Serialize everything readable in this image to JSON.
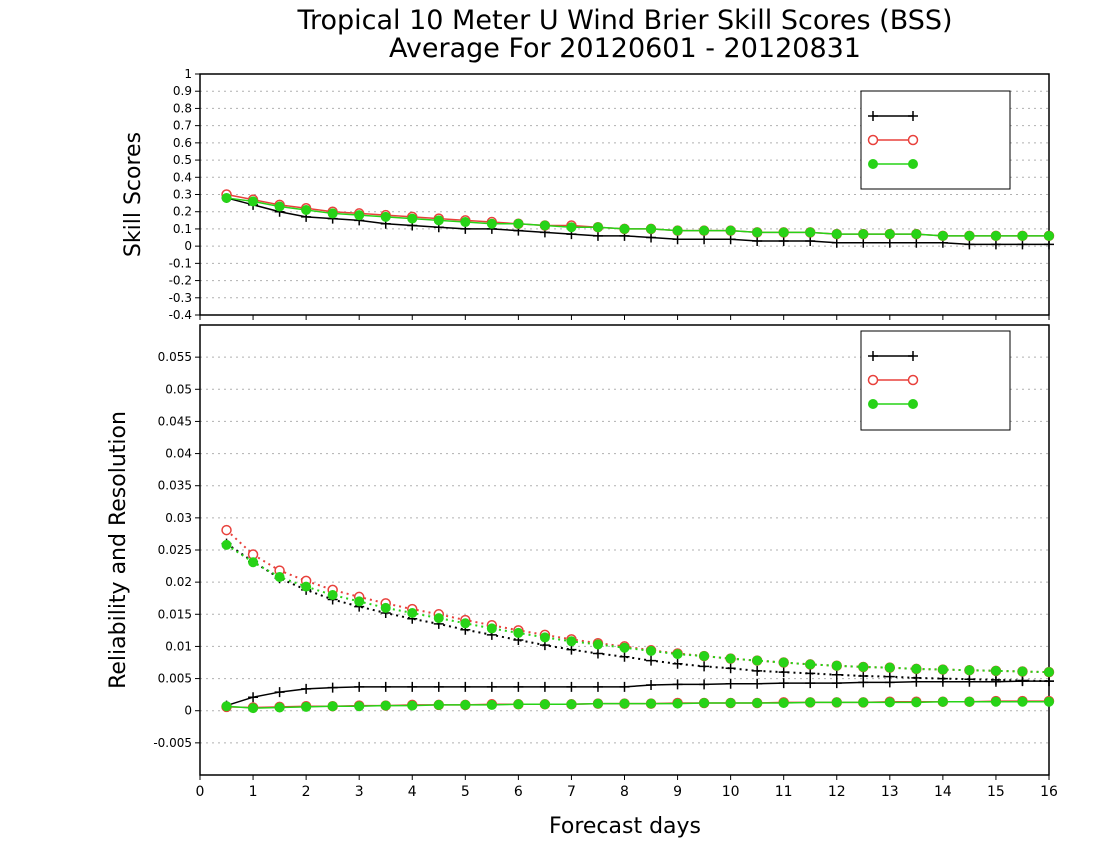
{
  "title_line1": "Tropical 10 Meter U Wind Brier Skill Scores (BSS)",
  "title_line2": "Average For 20120601 - 20120831",
  "xlabel": "Forecast days",
  "colors": {
    "black": "#000000",
    "red": "#e8413c",
    "green": "#27d317",
    "grid": "#b0b0b0"
  },
  "legend_labels": [
    "",
    "",
    ""
  ],
  "chart_data": [
    {
      "type": "line",
      "ylabel": "Skill Scores",
      "xlim": [
        0,
        16
      ],
      "ylim": [
        -0.4,
        1
      ],
      "x_ticks": [
        0,
        1,
        2,
        3,
        4,
        5,
        6,
        7,
        8,
        9,
        10,
        11,
        12,
        13,
        14,
        15,
        16
      ],
      "x_tick_labels": [
        "0",
        "1",
        "2",
        "3",
        "4",
        "5",
        "6",
        "7",
        "8",
        "9",
        "10",
        "11",
        "12",
        "13",
        "14",
        "15",
        "16"
      ],
      "y_ticks": [
        -0.4,
        -0.3,
        -0.2,
        -0.1,
        0,
        0.1,
        0.2,
        0.3,
        0.4,
        0.5,
        0.6,
        0.7,
        0.8,
        0.9,
        1
      ],
      "y_tick_labels": [
        "-0.4",
        "-0.3",
        "-0.2",
        "-0.1",
        "0",
        "0.1",
        "0.2",
        "0.3",
        "0.4",
        "0.5",
        "0.6",
        "0.7",
        "0.8",
        "0.9",
        "1"
      ],
      "grid": true,
      "legend_position": "top-right",
      "x": [
        0.5,
        1,
        1.5,
        2,
        2.5,
        3,
        3.5,
        4,
        4.5,
        5,
        5.5,
        6,
        6.5,
        7,
        7.5,
        8,
        8.5,
        9,
        9.5,
        10,
        10.5,
        11,
        11.5,
        12,
        12.5,
        13,
        13.5,
        14,
        14.5,
        15,
        15.5,
        16
      ],
      "series": [
        {
          "color": "black",
          "marker": "plus",
          "line": "solid",
          "values": [
            0.28,
            0.24,
            0.2,
            0.17,
            0.16,
            0.15,
            0.13,
            0.12,
            0.11,
            0.1,
            0.1,
            0.09,
            0.08,
            0.07,
            0.06,
            0.06,
            0.05,
            0.04,
            0.04,
            0.04,
            0.03,
            0.03,
            0.03,
            0.02,
            0.02,
            0.02,
            0.02,
            0.02,
            0.01,
            0.01,
            0.01,
            0.01
          ]
        },
        {
          "color": "red",
          "marker": "open-circle",
          "line": "solid",
          "values": [
            0.3,
            0.27,
            0.24,
            0.22,
            0.2,
            0.19,
            0.18,
            0.17,
            0.16,
            0.15,
            0.14,
            0.13,
            0.12,
            0.12,
            0.11,
            0.1,
            0.1,
            0.09,
            0.09,
            0.09,
            0.08,
            0.08,
            0.08,
            0.07,
            0.07,
            0.07,
            0.07,
            0.06,
            0.06,
            0.06,
            0.06,
            0.06
          ]
        },
        {
          "color": "green",
          "marker": "filled-circle",
          "line": "solid",
          "values": [
            0.28,
            0.26,
            0.23,
            0.21,
            0.19,
            0.18,
            0.17,
            0.16,
            0.15,
            0.14,
            0.13,
            0.13,
            0.12,
            0.11,
            0.11,
            0.1,
            0.1,
            0.09,
            0.09,
            0.09,
            0.08,
            0.08,
            0.08,
            0.07,
            0.07,
            0.07,
            0.07,
            0.06,
            0.06,
            0.06,
            0.06,
            0.06
          ]
        }
      ]
    },
    {
      "type": "line",
      "ylabel": "Reliability and Resolution",
      "xlim": [
        0,
        16
      ],
      "ylim": [
        -0.01,
        0.06
      ],
      "x_ticks": [
        0,
        1,
        2,
        3,
        4,
        5,
        6,
        7,
        8,
        9,
        10,
        11,
        12,
        13,
        14,
        15,
        16
      ],
      "x_tick_labels": [
        "0",
        "1",
        "2",
        "3",
        "4",
        "5",
        "6",
        "7",
        "8",
        "9",
        "10",
        "11",
        "12",
        "13",
        "14",
        "15",
        "16"
      ],
      "y_ticks": [
        -0.005,
        0,
        0.005,
        0.01,
        0.015,
        0.02,
        0.025,
        0.03,
        0.035,
        0.04,
        0.045,
        0.05,
        0.055
      ],
      "y_tick_labels": [
        "-0.005",
        "0",
        "0.005",
        "0.01",
        "0.015",
        "0.02",
        "0.025",
        "0.03",
        "0.035",
        "0.04",
        "0.045",
        "0.05",
        "0.055"
      ],
      "grid": true,
      "legend_position": "top-right",
      "x": [
        0.5,
        1,
        1.5,
        2,
        2.5,
        3,
        3.5,
        4,
        4.5,
        5,
        5.5,
        6,
        6.5,
        7,
        7.5,
        8,
        8.5,
        9,
        9.5,
        10,
        10.5,
        11,
        11.5,
        12,
        12.5,
        13,
        13.5,
        14,
        14.5,
        15,
        15.5,
        16
      ],
      "series": [
        {
          "color": "black",
          "marker": "plus",
          "line": "solid",
          "legend": true,
          "values": [
            0.0008,
            0.0021,
            0.0029,
            0.0034,
            0.0036,
            0.0037,
            0.0037,
            0.0037,
            0.0037,
            0.0037,
            0.0037,
            0.0037,
            0.0037,
            0.0037,
            0.0037,
            0.0037,
            0.004,
            0.0041,
            0.0041,
            0.0042,
            0.0042,
            0.0043,
            0.0043,
            0.0043,
            0.0044,
            0.0044,
            0.0045,
            0.0045,
            0.0045,
            0.0045,
            0.0046,
            0.0046
          ]
        },
        {
          "color": "red",
          "marker": "open-circle",
          "line": "solid",
          "legend": true,
          "values": [
            0.0006,
            0.0005,
            0.0006,
            0.0007,
            0.0007,
            0.0008,
            0.0008,
            0.0009,
            0.0009,
            0.0009,
            0.001,
            0.001,
            0.001,
            0.001,
            0.0011,
            0.0011,
            0.0011,
            0.0012,
            0.0012,
            0.0012,
            0.0012,
            0.0013,
            0.0013,
            0.0013,
            0.0013,
            0.0014,
            0.0014,
            0.0014,
            0.0014,
            0.0015,
            0.0015,
            0.0015
          ]
        },
        {
          "color": "green",
          "marker": "filled-circle",
          "line": "solid",
          "legend": true,
          "values": [
            0.0007,
            0.0004,
            0.0005,
            0.0006,
            0.0007,
            0.0007,
            0.0008,
            0.0008,
            0.0009,
            0.0009,
            0.0009,
            0.001,
            0.001,
            0.001,
            0.0011,
            0.0011,
            0.0011,
            0.0011,
            0.0012,
            0.0012,
            0.0012,
            0.0012,
            0.0013,
            0.0013,
            0.0013,
            0.0013,
            0.0013,
            0.0014,
            0.0014,
            0.0014,
            0.0014,
            0.0014
          ]
        },
        {
          "color": "black",
          "marker": "plus",
          "line": "dotted",
          "legend": false,
          "values": [
            0.026,
            0.0232,
            0.0206,
            0.0188,
            0.0173,
            0.0162,
            0.0152,
            0.0143,
            0.0135,
            0.0126,
            0.0118,
            0.011,
            0.0102,
            0.0095,
            0.0089,
            0.0084,
            0.0078,
            0.0073,
            0.0069,
            0.0066,
            0.0062,
            0.006,
            0.0058,
            0.0056,
            0.0054,
            0.0053,
            0.0051,
            0.005,
            0.0049,
            0.0048,
            0.0047,
            0.0046
          ]
        },
        {
          "color": "red",
          "marker": "open-circle",
          "line": "dotted",
          "legend": false,
          "values": [
            0.0281,
            0.0243,
            0.0218,
            0.0202,
            0.0188,
            0.0177,
            0.0167,
            0.0158,
            0.015,
            0.0141,
            0.0133,
            0.0125,
            0.0118,
            0.0111,
            0.0105,
            0.01,
            0.0094,
            0.0089,
            0.0085,
            0.0081,
            0.0078,
            0.0075,
            0.0072,
            0.007,
            0.0068,
            0.0067,
            0.0065,
            0.0064,
            0.0063,
            0.0062,
            0.0061,
            0.006
          ]
        },
        {
          "color": "green",
          "marker": "filled-circle",
          "line": "dotted",
          "legend": false,
          "values": [
            0.0258,
            0.0231,
            0.0208,
            0.0193,
            0.018,
            0.017,
            0.016,
            0.0152,
            0.0144,
            0.0136,
            0.0128,
            0.0121,
            0.0114,
            0.0108,
            0.0103,
            0.0098,
            0.0093,
            0.0088,
            0.0085,
            0.0081,
            0.0078,
            0.0075,
            0.0072,
            0.007,
            0.0068,
            0.0067,
            0.0065,
            0.0064,
            0.0063,
            0.0062,
            0.0061,
            0.006
          ]
        }
      ]
    }
  ]
}
